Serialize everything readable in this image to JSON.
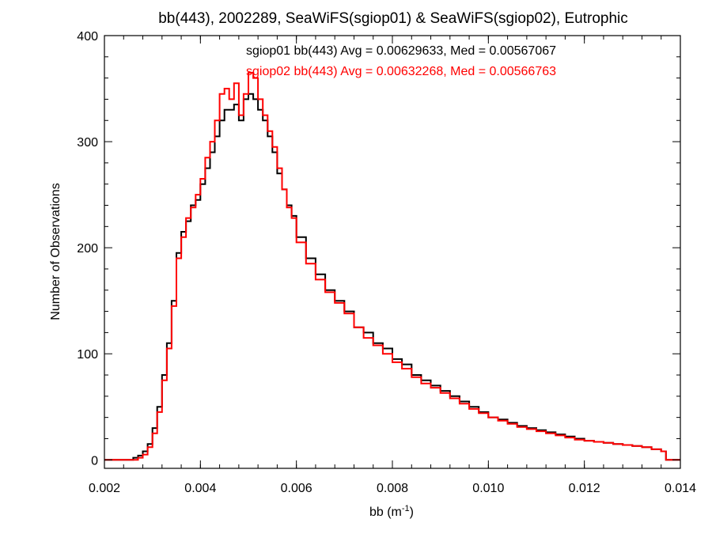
{
  "chart_data": {
    "type": "line",
    "title": "bb(443), 2002289, SeaWiFS(sgiop01) & SeaWiFS(sgiop02), Eutrophic",
    "xlabel": "bb (m",
    "xlabel_sup": "-1",
    "xlabel_close": ")",
    "ylabel": "Number of Observations",
    "xlim": [
      0.002,
      0.014
    ],
    "ylim": [
      -8,
      400
    ],
    "x_ticks": [
      0.002,
      0.004,
      0.006,
      0.008,
      0.01,
      0.012,
      0.014
    ],
    "x_tick_labels": [
      "0.002",
      "0.004",
      "0.006",
      "0.008",
      "0.010",
      "0.012",
      "0.014"
    ],
    "y_ticks": [
      0,
      100,
      200,
      300,
      400
    ],
    "y_tick_labels": [
      "0",
      "100",
      "200",
      "300",
      "400"
    ],
    "grid": false,
    "annotations": [
      "sgiop01 bb(443) Avg = 0.00629633, Med = 0.00567067",
      "sgiop02 bb(443) Avg = 0.00632268, Med = 0.00566763"
    ],
    "series": [
      {
        "color": "#000000",
        "x": [
          0.002,
          0.0025,
          0.0026,
          0.0027,
          0.0028,
          0.0029,
          0.003,
          0.0031,
          0.0032,
          0.0033,
          0.0034,
          0.0035,
          0.0036,
          0.0037,
          0.0038,
          0.0039,
          0.004,
          0.0041,
          0.0042,
          0.0043,
          0.0044,
          0.0045,
          0.0046,
          0.0047,
          0.0048,
          0.0049,
          0.005,
          0.0051,
          0.0052,
          0.0053,
          0.0054,
          0.0055,
          0.0056,
          0.0057,
          0.0058,
          0.0059,
          0.006,
          0.0062,
          0.0064,
          0.0066,
          0.0068,
          0.007,
          0.0072,
          0.0074,
          0.0076,
          0.0078,
          0.008,
          0.0082,
          0.0084,
          0.0086,
          0.0088,
          0.009,
          0.0092,
          0.0094,
          0.0096,
          0.0098,
          0.01,
          0.0102,
          0.0104,
          0.0106,
          0.0108,
          0.011,
          0.0112,
          0.0114,
          0.0116,
          0.0118,
          0.012,
          0.0122,
          0.0124,
          0.0126,
          0.0128,
          0.013,
          0.0132,
          0.0134,
          0.0136,
          0.0137,
          0.014
        ],
        "values": [
          0,
          0,
          2,
          4,
          8,
          15,
          30,
          50,
          80,
          110,
          150,
          195,
          215,
          225,
          240,
          245,
          260,
          275,
          290,
          305,
          320,
          330,
          330,
          335,
          320,
          340,
          345,
          340,
          330,
          320,
          305,
          290,
          270,
          255,
          240,
          230,
          210,
          190,
          175,
          160,
          150,
          140,
          125,
          120,
          110,
          105,
          95,
          90,
          80,
          75,
          70,
          65,
          60,
          55,
          50,
          45,
          40,
          38,
          35,
          32,
          30,
          28,
          26,
          24,
          22,
          20,
          18,
          17,
          16,
          15,
          14,
          13,
          12,
          10,
          8,
          0,
          0
        ]
      },
      {
        "color": "#ff0000",
        "x": [
          0.002,
          0.0025,
          0.0026,
          0.0027,
          0.0028,
          0.0029,
          0.003,
          0.0031,
          0.0032,
          0.0033,
          0.0034,
          0.0035,
          0.0036,
          0.0037,
          0.0038,
          0.0039,
          0.004,
          0.0041,
          0.0042,
          0.0043,
          0.0044,
          0.0045,
          0.0046,
          0.0047,
          0.0048,
          0.0049,
          0.005,
          0.0051,
          0.0052,
          0.0053,
          0.0054,
          0.0055,
          0.0056,
          0.0057,
          0.0058,
          0.0059,
          0.006,
          0.0062,
          0.0064,
          0.0066,
          0.0068,
          0.007,
          0.0072,
          0.0074,
          0.0076,
          0.0078,
          0.008,
          0.0082,
          0.0084,
          0.0086,
          0.0088,
          0.009,
          0.0092,
          0.0094,
          0.0096,
          0.0098,
          0.01,
          0.0102,
          0.0104,
          0.0106,
          0.0108,
          0.011,
          0.0112,
          0.0114,
          0.0116,
          0.0118,
          0.012,
          0.0122,
          0.0124,
          0.0126,
          0.0128,
          0.013,
          0.0132,
          0.0134,
          0.0136,
          0.0137,
          0.014
        ],
        "values": [
          0,
          0,
          0,
          2,
          5,
          12,
          25,
          45,
          75,
          105,
          145,
          190,
          210,
          228,
          238,
          250,
          265,
          285,
          300,
          320,
          345,
          350,
          340,
          355,
          325,
          345,
          365,
          360,
          340,
          325,
          310,
          295,
          275,
          255,
          238,
          228,
          205,
          185,
          170,
          158,
          148,
          138,
          125,
          115,
          108,
          100,
          92,
          86,
          78,
          72,
          68,
          63,
          58,
          53,
          48,
          44,
          40,
          37,
          34,
          31,
          29,
          27,
          25,
          23,
          21,
          19,
          18,
          17,
          16,
          15,
          14,
          13,
          12,
          10,
          8,
          0,
          0
        ]
      }
    ]
  }
}
